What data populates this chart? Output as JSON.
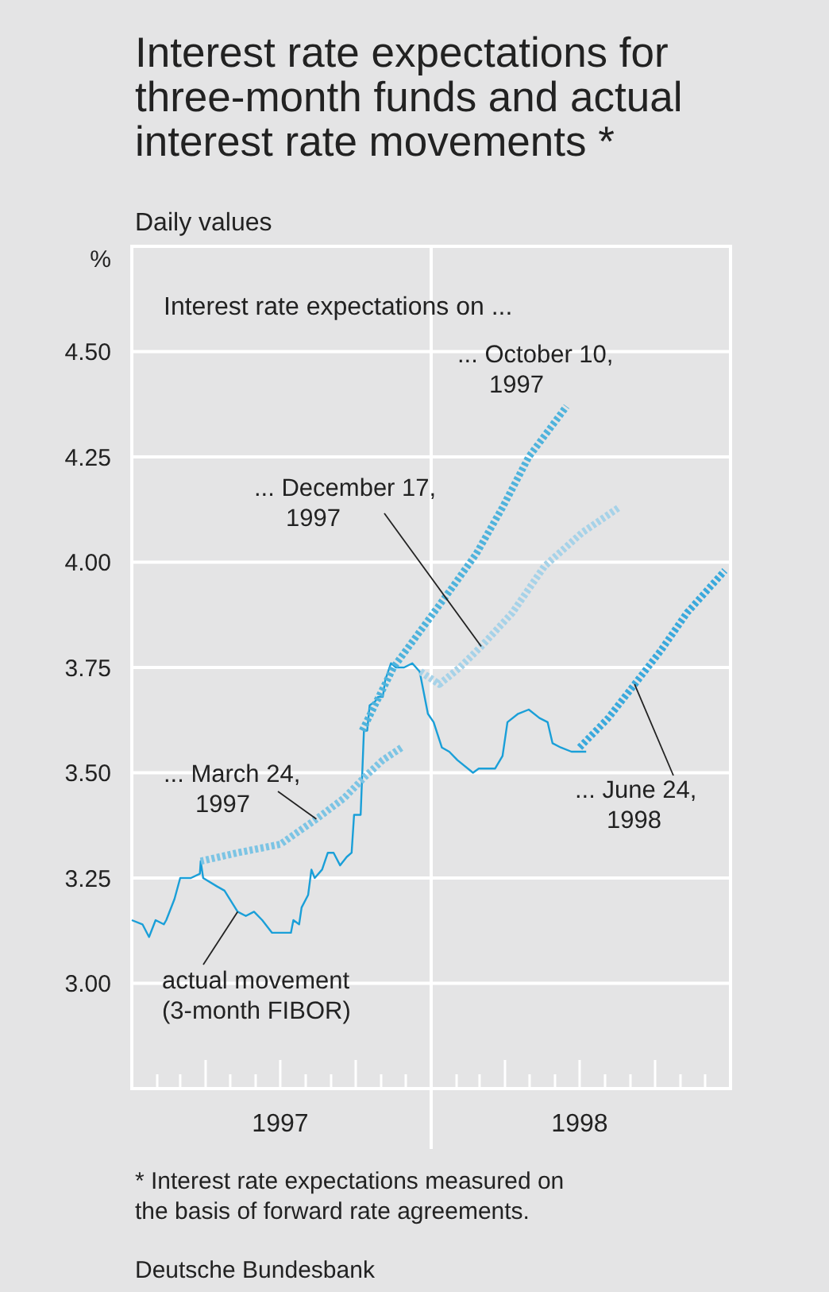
{
  "chart_data": {
    "type": "line",
    "title": "Interest rate expectations for three-month funds and actual interest rate movements *",
    "subtitle": "Daily values",
    "ylabel": "%",
    "xlim": [
      "1997-01-01",
      "1999-01-01"
    ],
    "ylim": [
      2.75,
      4.75
    ],
    "yticks": [
      {
        "value": 3,
        "label": "3.00"
      },
      {
        "value": 3.25,
        "label": "3.25"
      },
      {
        "value": 3.5,
        "label": "3.50"
      },
      {
        "value": 3.75,
        "label": "3.75"
      },
      {
        "value": 4,
        "label": "4.00"
      },
      {
        "value": 4.25,
        "label": "4.25"
      },
      {
        "value": 4.5,
        "label": "4.50"
      }
    ],
    "xticks": [
      {
        "value": "1997-01-01",
        "label": null
      },
      {
        "value": "1997-02-01",
        "label": null
      },
      {
        "value": "1997-03-01",
        "label": null
      },
      {
        "value": "1997-04-01",
        "label": null
      },
      {
        "value": "1997-05-01",
        "label": null
      },
      {
        "value": "1997-06-01",
        "label": null
      },
      {
        "value": "1997-07-01",
        "label": "1997"
      },
      {
        "value": "1997-08-01",
        "label": null
      },
      {
        "value": "1997-09-01",
        "label": null
      },
      {
        "value": "1997-10-01",
        "label": null
      },
      {
        "value": "1997-11-01",
        "label": null
      },
      {
        "value": "1997-12-01",
        "label": null
      },
      {
        "value": "1998-01-01",
        "label": null
      },
      {
        "value": "1998-02-01",
        "label": null
      },
      {
        "value": "1998-03-01",
        "label": null
      },
      {
        "value": "1998-04-01",
        "label": null
      },
      {
        "value": "1998-05-01",
        "label": null
      },
      {
        "value": "1998-06-01",
        "label": null
      },
      {
        "value": "1998-07-01",
        "label": "1998"
      },
      {
        "value": "1998-08-01",
        "label": null
      },
      {
        "value": "1998-09-01",
        "label": null
      },
      {
        "value": "1998-10-01",
        "label": null
      },
      {
        "value": "1998-11-01",
        "label": null
      },
      {
        "value": "1998-12-01",
        "label": null
      },
      {
        "value": "1999-01-01",
        "label": null
      }
    ],
    "grid": "y",
    "legend": false,
    "marker": "none",
    "ref_lines": [
      {
        "axis": "x",
        "value": "1998-01-01",
        "label": null,
        "color": "#ffffff"
      }
    ],
    "annotations": [
      "Interest rate expectations on ...",
      "* Interest rate expectations measured on the basis of forward rate agreements.",
      "Deutsche Bundesbank"
    ],
    "series": [
      {
        "name": "actual movement (3-month FIBOR)",
        "color": "#1a9fd8",
        "line_style": "solid",
        "x": [
          "1997-01-01",
          "1997-01-14",
          "1997-01-22",
          "1997-01-30",
          "1997-02-09",
          "1997-02-12",
          "1997-02-22",
          "1997-03-01",
          "1997-03-14",
          "1997-03-25",
          "1997-03-26",
          "1997-03-29",
          "1997-04-15",
          "1997-04-24",
          "1997-05-10",
          "1997-05-20",
          "1997-05-30",
          "1997-06-09",
          "1997-06-21",
          "1997-07-01",
          "1997-07-14",
          "1997-07-17",
          "1997-07-24",
          "1997-07-27",
          "1997-08-04",
          "1997-08-08",
          "1997-08-12",
          "1997-08-21",
          "1997-08-28",
          "1997-09-04",
          "1997-09-12",
          "1997-09-20",
          "1997-09-26",
          "1997-09-29",
          "1997-10-07",
          "1997-10-11",
          "1997-10-15",
          "1997-10-18",
          "1997-10-25",
          "1997-10-28",
          "1997-11-03",
          "1997-11-06",
          "1997-11-13",
          "1997-11-19",
          "1997-11-29",
          "1997-12-09",
          "1997-12-18",
          "1997-12-28",
          "1998-01-04",
          "1998-01-14",
          "1998-01-23",
          "1998-02-02",
          "1998-02-21",
          "1998-02-28",
          "1998-03-10",
          "1998-03-20",
          "1998-03-29",
          "1998-04-04",
          "1998-04-17",
          "1998-04-30",
          "1998-05-13",
          "1998-05-23",
          "1998-05-29",
          "1998-06-08",
          "1998-06-21",
          "1998-07-01",
          "1998-07-09"
        ],
        "values": [
          3.15,
          3.14,
          3.11,
          3.15,
          3.14,
          3.15,
          3.2,
          3.25,
          3.25,
          3.26,
          3.29,
          3.25,
          3.23,
          3.22,
          3.17,
          3.16,
          3.17,
          3.15,
          3.12,
          3.12,
          3.12,
          3.15,
          3.14,
          3.18,
          3.21,
          3.27,
          3.25,
          3.27,
          3.31,
          3.31,
          3.28,
          3.3,
          3.31,
          3.4,
          3.4,
          3.6,
          3.6,
          3.66,
          3.67,
          3.68,
          3.68,
          3.72,
          3.76,
          3.75,
          3.75,
          3.76,
          3.74,
          3.64,
          3.62,
          3.56,
          3.55,
          3.53,
          3.5,
          3.51,
          3.51,
          3.51,
          3.54,
          3.62,
          3.64,
          3.65,
          3.63,
          3.62,
          3.57,
          3.56,
          3.55,
          3.55,
          3.55
        ]
      },
      {
        "name": "... March 24, 1997",
        "color": "#7cc4e4",
        "line_style": "dotted",
        "x": [
          "1997-03-26",
          "1997-05-10",
          "1997-07-01",
          "1997-08-14",
          "1997-09-17",
          "1997-10-12",
          "1997-11-03",
          "1997-11-26"
        ],
        "values": [
          3.29,
          3.31,
          3.33,
          3.39,
          3.44,
          3.49,
          3.53,
          3.56
        ]
      },
      {
        "name": "... October 10, 1997",
        "color": "#4fb3dc",
        "line_style": "dotted",
        "x": [
          "1997-10-09",
          "1997-11-16",
          "1998-01-23",
          "1998-02-25",
          "1998-03-29",
          "1998-04-30",
          "1998-06-15"
        ],
        "values": [
          3.6,
          3.75,
          3.93,
          4.02,
          4.13,
          4.25,
          4.37
        ]
      },
      {
        "name": "... December 17, 1997",
        "color": "#a6d2e8",
        "line_style": "dotted",
        "x": [
          "1997-12-19",
          "1998-01-11",
          "1998-02-05",
          "1998-03-03",
          "1998-04-10",
          "1998-05-19",
          "1998-07-04",
          "1998-08-18"
        ],
        "values": [
          3.74,
          3.71,
          3.75,
          3.8,
          3.88,
          3.99,
          4.07,
          4.13
        ]
      },
      {
        "name": "... June 24, 1998",
        "color": "#3aa9dc",
        "line_style": "dotted",
        "x": [
          "1998-07-01",
          "1998-08-05",
          "1998-09-06",
          "1998-10-08",
          "1998-11-09",
          "1998-12-25"
        ],
        "values": [
          3.56,
          3.63,
          3.71,
          3.79,
          3.88,
          3.98
        ]
      }
    ]
  }
}
